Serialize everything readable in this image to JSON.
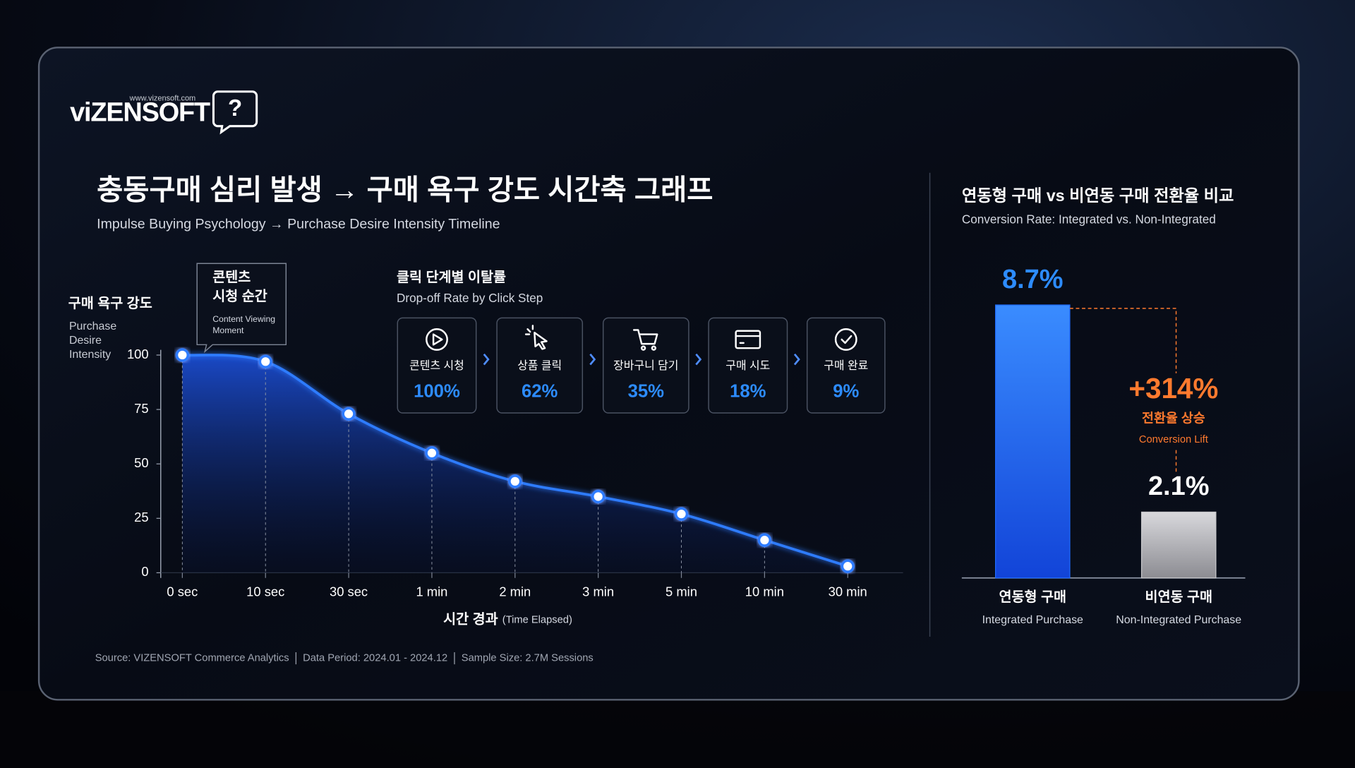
{
  "logo": {
    "name": "viZENSOFT",
    "url": "www.vizensoft.com",
    "icon": "?"
  },
  "header": {
    "title": "충동구매 심리 발생 → 구매 욕구 강도 시간축 그래프",
    "subtitle": "Impulse Buying Psychology → Purchase Desire Intensity Timeline"
  },
  "chart_data": [
    {
      "type": "line",
      "ylabel": "구매 욕구 강도",
      "ylabel_en_lines": [
        "Purchase",
        "Desire",
        "Intensity"
      ],
      "xlabel": "시간 경과",
      "xlabel_en": "(Time Elapsed)",
      "categories": [
        "0 sec",
        "10 sec",
        "30 sec",
        "1 min",
        "2 min",
        "3 min",
        "5 min",
        "10 min",
        "30 min"
      ],
      "series": [
        {
          "name": "Purchase Desire Intensity",
          "color": "#2f7bff",
          "values": [
            100,
            97,
            73,
            55,
            42,
            35,
            27,
            15,
            3
          ]
        }
      ],
      "ylim": [
        0,
        100
      ],
      "yticks": [
        0,
        25,
        50,
        75,
        100
      ],
      "annotation": {
        "title_lines": [
          "콘텐츠",
          "시청 순간"
        ],
        "text_lines": [
          "Content Viewing",
          "Moment"
        ]
      }
    },
    {
      "type": "bar",
      "title": "연동형 구매 vs 비연동 구매 전환율 비교",
      "subtitle": "Conversion Rate: Integrated vs. Non-Integrated",
      "categories": [
        "연동형 구매",
        "비연동 구매"
      ],
      "categories_en": [
        "Integrated Purchase",
        "Non-Integrated Purchase"
      ],
      "values": [
        8.7,
        2.1
      ],
      "value_labels": [
        "8.7%",
        "2.1%"
      ],
      "colors": [
        "#1f6bff",
        "#c9c9cc"
      ],
      "annotation": {
        "value": "+314%",
        "label": "전환율 상승",
        "label_en": "Conversion Lift"
      }
    }
  ],
  "funnel": {
    "title": "클릭 단계별 이탈률",
    "subtitle": "Drop-off Rate by Click Step",
    "steps": [
      {
        "label": "콘텐츠 시청",
        "value": "100%"
      },
      {
        "label": "상품 클릭",
        "value": "62%"
      },
      {
        "label": "장바구니 담기",
        "value": "35%"
      },
      {
        "label": "구매 시도",
        "value": "18%"
      },
      {
        "label": "구매 완료",
        "value": "9%"
      }
    ]
  },
  "footer": [
    "Source: VIZENSOFT Commerce Analytics",
    "Data Period: 2024.01 - 2024.12",
    "Sample Size: 2.7M Sessions"
  ]
}
